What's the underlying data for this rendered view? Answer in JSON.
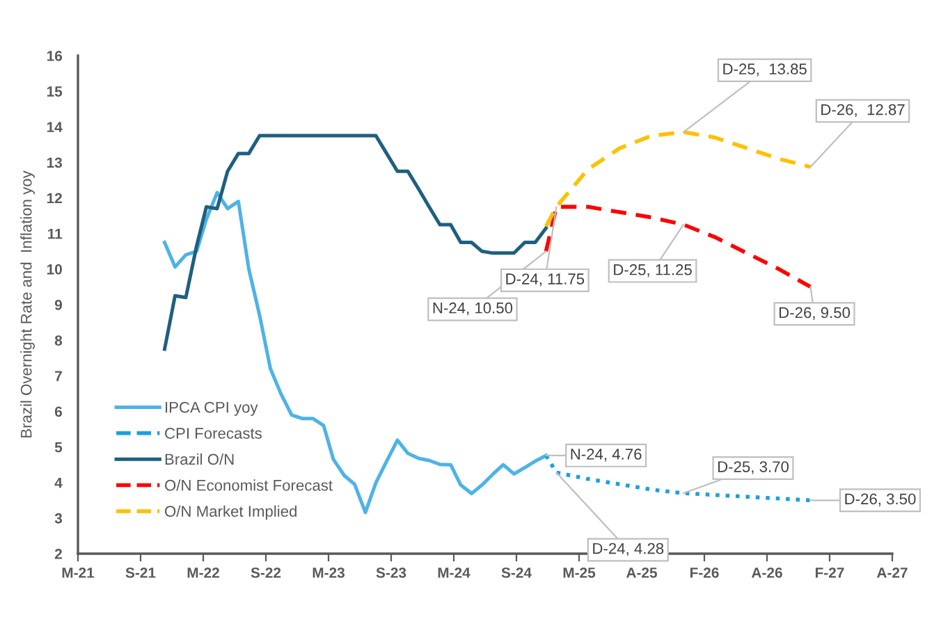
{
  "chart_data": {
    "type": "line",
    "ylabel": "Brazil Overnight Rate and  Inflation yoy",
    "xlim": [
      "2021-02-25",
      "2027-07-24"
    ],
    "xticks": [
      {
        "value": "2021-02-25",
        "label": "M-21"
      },
      {
        "value": "2021-08-24",
        "label": "S-21"
      },
      {
        "value": "2022-02-20",
        "label": "M-22"
      },
      {
        "value": "2022-08-19",
        "label": "S-22"
      },
      {
        "value": "2023-02-15",
        "label": "M-23"
      },
      {
        "value": "2023-08-14",
        "label": "S-23"
      },
      {
        "value": "2024-02-10",
        "label": "M-24"
      },
      {
        "value": "2024-08-08",
        "label": "S-24"
      },
      {
        "value": "2025-02-04",
        "label": "M-25"
      },
      {
        "value": "2025-08-03",
        "label": "A-25"
      },
      {
        "value": "2026-01-30",
        "label": "F-26"
      },
      {
        "value": "2026-07-29",
        "label": "A-26"
      },
      {
        "value": "2027-01-25",
        "label": "F-27"
      },
      {
        "value": "2027-07-24",
        "label": "A-27"
      }
    ],
    "ylim": [
      2,
      16
    ],
    "yticks": [
      2,
      3,
      4,
      5,
      6,
      7,
      8,
      9,
      10,
      11,
      12,
      13,
      14,
      15,
      16
    ],
    "grid": false,
    "legend": "bottom left",
    "series": [
      {
        "name": "IPCA CPI yoy",
        "color": "#4db3e6",
        "line_style": "solid",
        "x": [
          "2021-11",
          "2021-12",
          "2022-01",
          "2022-02",
          "2022-03",
          "2022-04",
          "2022-05",
          "2022-06",
          "2022-07",
          "2022-08",
          "2022-09",
          "2022-10",
          "2022-11",
          "2022-12",
          "2023-01",
          "2023-02",
          "2023-03",
          "2023-04",
          "2023-05",
          "2023-06",
          "2023-07",
          "2023-08",
          "2023-09",
          "2023-10",
          "2023-11",
          "2023-12",
          "2024-01",
          "2024-02",
          "2024-03",
          "2024-04",
          "2024-05",
          "2024-06",
          "2024-07",
          "2024-08",
          "2024-09",
          "2024-10",
          "2024-11"
        ],
        "values": [
          10.75,
          10.06,
          10.4,
          10.5,
          11.4,
          12.15,
          11.7,
          11.9,
          10.0,
          8.7,
          7.2,
          6.5,
          5.9,
          5.8,
          5.8,
          5.6,
          4.65,
          4.2,
          3.95,
          3.16,
          3.99,
          4.6,
          5.19,
          4.82,
          4.68,
          4.62,
          4.51,
          4.5,
          3.93,
          3.69,
          3.93,
          4.23,
          4.5,
          4.24,
          4.42,
          4.6,
          4.76
        ]
      },
      {
        "name": "CPI Forecasts",
        "color": "#1ba1dc",
        "line_style": "dotted",
        "x": [
          "2024-11",
          "2024-12",
          "2025-03",
          "2025-06",
          "2025-09",
          "2025-12",
          "2026-06",
          "2026-12"
        ],
        "values": [
          4.76,
          4.28,
          4.1,
          3.95,
          3.8,
          3.7,
          3.6,
          3.5
        ]
      },
      {
        "name": "Brazil O/N",
        "color": "#1f5f80",
        "line_style": "solid",
        "x": [
          "2021-11",
          "2021-12",
          "2022-01",
          "2022-02",
          "2022-03",
          "2022-04",
          "2022-05",
          "2022-06",
          "2022-07",
          "2022-08",
          "2022-09",
          "2022-10",
          "2022-11",
          "2022-12",
          "2023-01",
          "2023-02",
          "2023-03",
          "2023-04",
          "2023-05",
          "2023-06",
          "2023-07",
          "2023-08",
          "2023-09",
          "2023-10",
          "2023-11",
          "2023-12",
          "2024-01",
          "2024-02",
          "2024-03",
          "2024-04",
          "2024-05",
          "2024-06",
          "2024-07",
          "2024-08",
          "2024-09",
          "2024-10",
          "2024-11"
        ],
        "values": [
          7.75,
          9.25,
          9.2,
          10.65,
          11.75,
          11.7,
          12.75,
          13.25,
          13.25,
          13.75,
          13.75,
          13.75,
          13.75,
          13.75,
          13.75,
          13.75,
          13.75,
          13.75,
          13.75,
          13.75,
          13.75,
          13.25,
          12.75,
          12.75,
          12.25,
          11.75,
          11.25,
          11.25,
          10.75,
          10.75,
          10.5,
          10.45,
          10.45,
          10.45,
          10.75,
          10.75,
          11.15
        ]
      },
      {
        "name": "O/N Economist Forecast",
        "color": "#ff0000",
        "line_style": "dashed",
        "x": [
          "2024-11",
          "2024-12",
          "2025-03",
          "2025-06",
          "2025-09",
          "2025-12",
          "2026-03",
          "2026-06",
          "2026-09",
          "2026-12"
        ],
        "values": [
          10.5,
          11.75,
          11.75,
          11.6,
          11.45,
          11.25,
          10.9,
          10.45,
          10.0,
          9.5
        ]
      },
      {
        "name": "O/N Market Implied",
        "color": "#ffc000",
        "line_style": "dashed",
        "x": [
          "2024-11",
          "2024-12",
          "2025-03",
          "2025-06",
          "2025-09",
          "2025-12",
          "2026-03",
          "2026-06",
          "2026-09",
          "2026-12"
        ],
        "values": [
          11.2,
          11.75,
          12.8,
          13.4,
          13.75,
          13.85,
          13.7,
          13.4,
          13.1,
          12.87
        ]
      }
    ],
    "annotations": [
      {
        "text": "D-25,  13.85",
        "x": "2025-12",
        "y": 13.85
      },
      {
        "text": "D-26,  12.87",
        "x": "2026-12",
        "y": 12.87
      },
      {
        "text": "D-24, 11.75",
        "x": "2024-12",
        "y": 11.75
      },
      {
        "text": "N-24, 10.50",
        "x": "2024-11",
        "y": 10.5
      },
      {
        "text": "D-25, 11.25",
        "x": "2025-12",
        "y": 11.25
      },
      {
        "text": "D-26, 9.50",
        "x": "2026-12",
        "y": 9.5
      },
      {
        "text": "N-24, 4.76",
        "x": "2024-11",
        "y": 4.76
      },
      {
        "text": "D-24, 4.28",
        "x": "2024-12",
        "y": 4.28
      },
      {
        "text": "D-25, 3.70",
        "x": "2025-12",
        "y": 3.7
      },
      {
        "text": "D-26, 3.50",
        "x": "2026-12",
        "y": 3.5
      }
    ]
  }
}
